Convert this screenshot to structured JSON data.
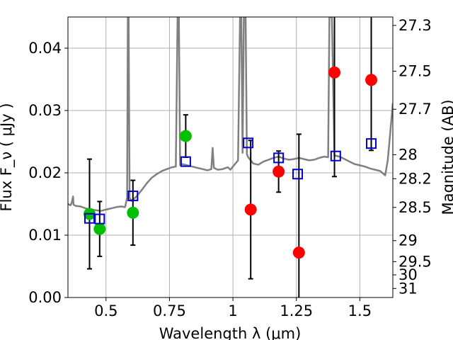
{
  "chart_data": {
    "type": "scatter",
    "title": "",
    "xlabel": "Wavelength  λ (μm)",
    "ylabel": "Flux  F_ν  ( μJy )",
    "y2label": "Magnitude (AB)",
    "xlim": [
      0.35,
      1.63
    ],
    "ylim": [
      0,
      0.045
    ],
    "grid": true,
    "x_ticks": [
      {
        "value": 0.5,
        "label": "0.5"
      },
      {
        "value": 0.75,
        "label": "0.75"
      },
      {
        "value": 1.0,
        "label": "1"
      },
      {
        "value": 1.25,
        "label": "1.25"
      },
      {
        "value": 1.5,
        "label": "1.5"
      }
    ],
    "y_ticks": [
      {
        "value": 0.0,
        "label": "0.00"
      },
      {
        "value": 0.01,
        "label": "0.01"
      },
      {
        "value": 0.02,
        "label": "0.02"
      },
      {
        "value": 0.03,
        "label": "0.03"
      },
      {
        "value": 0.04,
        "label": "0.04"
      }
    ],
    "y2_ticks": [
      {
        "mag": 27.3,
        "label": "27.3"
      },
      {
        "mag": 27.5,
        "label": "27.5"
      },
      {
        "mag": 27.7,
        "label": "27.7"
      },
      {
        "mag": 28.0,
        "label": "28"
      },
      {
        "mag": 28.2,
        "label": "28.2"
      },
      {
        "mag": 28.5,
        "label": "28.5"
      },
      {
        "mag": 29.0,
        "label": "29"
      },
      {
        "mag": 29.5,
        "label": "29.5"
      },
      {
        "mag": 30.0,
        "label": "30"
      },
      {
        "mag": 31.0,
        "label": "31"
      }
    ],
    "colors": {
      "green": "#00c000",
      "red": "#ff0000",
      "model_box": "#0000cc",
      "spectrum": "#808080",
      "errorbar": "#000000",
      "grid": "#b0b0b0"
    },
    "series": [
      {
        "marker": "green-circle",
        "points": [
          {
            "x": 0.435,
            "y": 0.0134
          },
          {
            "x": 0.475,
            "y": 0.011
          },
          {
            "x": 0.606,
            "y": 0.0136
          },
          {
            "x": 0.814,
            "y": 0.0259
          }
        ]
      },
      {
        "marker": "red-circle",
        "points": [
          {
            "x": 1.07,
            "y": 0.0141
          },
          {
            "x": 1.18,
            "y": 0.0202
          },
          {
            "x": 1.26,
            "y": 0.0072
          },
          {
            "x": 1.4,
            "y": 0.0361
          },
          {
            "x": 1.545,
            "y": 0.0349
          }
        ]
      },
      {
        "marker": "blue-open-square",
        "points": [
          {
            "x": 0.435,
            "y": 0.0127
          },
          {
            "x": 0.475,
            "y": 0.0126
          },
          {
            "x": 0.606,
            "y": 0.0163
          },
          {
            "x": 0.814,
            "y": 0.0218
          },
          {
            "x": 1.06,
            "y": 0.0248
          },
          {
            "x": 1.18,
            "y": 0.0224
          },
          {
            "x": 1.255,
            "y": 0.0198
          },
          {
            "x": 1.405,
            "y": 0.0227
          },
          {
            "x": 1.545,
            "y": 0.0247
          }
        ]
      }
    ],
    "errorbars": [
      {
        "x": 0.435,
        "y": 0.0134,
        "low": 0.0046,
        "high": 0.0222
      },
      {
        "x": 0.475,
        "y": 0.011,
        "low": 0.0066,
        "high": 0.0154
      },
      {
        "x": 0.606,
        "y": 0.0136,
        "low": 0.0084,
        "high": 0.0188
      },
      {
        "x": 0.814,
        "y": 0.0259,
        "low": 0.0225,
        "high": 0.0293
      },
      {
        "x": 1.07,
        "y": 0.0141,
        "low": 0.003,
        "high": 0.0252
      },
      {
        "x": 1.18,
        "y": 0.0202,
        "low": 0.0169,
        "high": 0.0235
      },
      {
        "x": 1.26,
        "y": 0.0072,
        "low": 0.0,
        "high": 0.0262
      },
      {
        "x": 1.4,
        "y": 0.0361,
        "low": 0.0194,
        "high": 0.045
      },
      {
        "x": 1.545,
        "y": 0.0349,
        "low": 0.0236,
        "high": 0.045
      }
    ],
    "spectrum": [
      [
        0.35,
        0.015
      ],
      [
        0.36,
        0.0148
      ],
      [
        0.365,
        0.0152
      ],
      [
        0.37,
        0.0162
      ],
      [
        0.372,
        0.0149
      ],
      [
        0.38,
        0.0147
      ],
      [
        0.4,
        0.0146
      ],
      [
        0.42,
        0.0143
      ],
      [
        0.44,
        0.0141
      ],
      [
        0.46,
        0.014
      ],
      [
        0.48,
        0.0139
      ],
      [
        0.5,
        0.0141
      ],
      [
        0.52,
        0.0143
      ],
      [
        0.54,
        0.0145
      ],
      [
        0.56,
        0.0146
      ],
      [
        0.575,
        0.0145
      ],
      [
        0.583,
        0.016
      ],
      [
        0.586,
        0.045
      ],
      [
        0.589,
        0.045
      ],
      [
        0.593,
        0.016
      ],
      [
        0.6,
        0.0155
      ],
      [
        0.62,
        0.0162
      ],
      [
        0.64,
        0.0172
      ],
      [
        0.66,
        0.0183
      ],
      [
        0.68,
        0.0192
      ],
      [
        0.7,
        0.0198
      ],
      [
        0.72,
        0.0203
      ],
      [
        0.74,
        0.0206
      ],
      [
        0.76,
        0.0209
      ],
      [
        0.775,
        0.021
      ],
      [
        0.782,
        0.045
      ],
      [
        0.787,
        0.045
      ],
      [
        0.792,
        0.0212
      ],
      [
        0.8,
        0.0214
      ],
      [
        0.82,
        0.0212
      ],
      [
        0.84,
        0.021
      ],
      [
        0.86,
        0.0208
      ],
      [
        0.88,
        0.0206
      ],
      [
        0.9,
        0.0204
      ],
      [
        0.915,
        0.0206
      ],
      [
        0.92,
        0.024
      ],
      [
        0.925,
        0.0208
      ],
      [
        0.94,
        0.0205
      ],
      [
        0.96,
        0.0206
      ],
      [
        0.98,
        0.0209
      ],
      [
        0.99,
        0.0205
      ],
      [
        1.0,
        0.021
      ],
      [
        1.01,
        0.0215
      ],
      [
        1.02,
        0.022
      ],
      [
        1.028,
        0.045
      ],
      [
        1.033,
        0.045
      ],
      [
        1.038,
        0.0232
      ],
      [
        1.043,
        0.045
      ],
      [
        1.05,
        0.045
      ],
      [
        1.055,
        0.023
      ],
      [
        1.06,
        0.0225
      ],
      [
        1.08,
        0.0215
      ],
      [
        1.1,
        0.0213
      ],
      [
        1.12,
        0.0218
      ],
      [
        1.14,
        0.0221
      ],
      [
        1.16,
        0.0224
      ],
      [
        1.18,
        0.0226
      ],
      [
        1.2,
        0.0223
      ],
      [
        1.22,
        0.0221
      ],
      [
        1.24,
        0.0222
      ],
      [
        1.26,
        0.0224
      ],
      [
        1.28,
        0.0222
      ],
      [
        1.3,
        0.022
      ],
      [
        1.32,
        0.0221
      ],
      [
        1.34,
        0.0224
      ],
      [
        1.36,
        0.0226
      ],
      [
        1.375,
        0.0225
      ],
      [
        1.38,
        0.045
      ],
      [
        1.385,
        0.045
      ],
      [
        1.39,
        0.045
      ],
      [
        1.4,
        0.0228
      ],
      [
        1.42,
        0.0226
      ],
      [
        1.44,
        0.0222
      ],
      [
        1.46,
        0.0218
      ],
      [
        1.48,
        0.0214
      ],
      [
        1.5,
        0.0212
      ],
      [
        1.52,
        0.021
      ],
      [
        1.54,
        0.0207
      ],
      [
        1.56,
        0.0205
      ],
      [
        1.58,
        0.0203
      ],
      [
        1.6,
        0.0196
      ],
      [
        1.61,
        0.022
      ],
      [
        1.62,
        0.0265
      ],
      [
        1.63,
        0.0312
      ]
    ]
  }
}
